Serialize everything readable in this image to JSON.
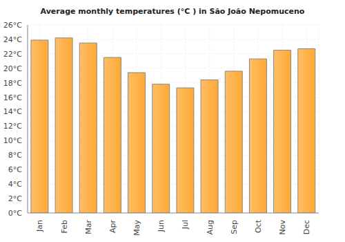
{
  "chart_data": {
    "type": "bar",
    "title": "Average monthly temperatures (°C ) in São João Nepomuceno",
    "categories": [
      "Jan",
      "Feb",
      "Mar",
      "Apr",
      "May",
      "Jun",
      "Jul",
      "Aug",
      "Sep",
      "Oct",
      "Nov",
      "Dec"
    ],
    "values": [
      23.9,
      24.2,
      23.5,
      21.5,
      19.4,
      17.8,
      17.3,
      18.4,
      19.6,
      21.3,
      22.5,
      22.7
    ],
    "color": "#ffa833",
    "ylim": [
      0,
      26
    ],
    "yticks": [
      {
        "value": 0,
        "label": "0°C"
      },
      {
        "value": 2,
        "label": "2°C"
      },
      {
        "value": 4,
        "label": "4°C"
      },
      {
        "value": 6,
        "label": "6°C"
      },
      {
        "value": 8,
        "label": "8°C"
      },
      {
        "value": 10,
        "label": "10°C"
      },
      {
        "value": 12,
        "label": "12°C"
      },
      {
        "value": 14,
        "label": "14°C"
      },
      {
        "value": 16,
        "label": "16°C"
      },
      {
        "value": 18,
        "label": "18°C"
      },
      {
        "value": 20,
        "label": "20°C"
      },
      {
        "value": 22,
        "label": "22°C"
      },
      {
        "value": 24,
        "label": "24°C"
      },
      {
        "value": 26,
        "label": "26°C"
      }
    ],
    "grid": true
  }
}
